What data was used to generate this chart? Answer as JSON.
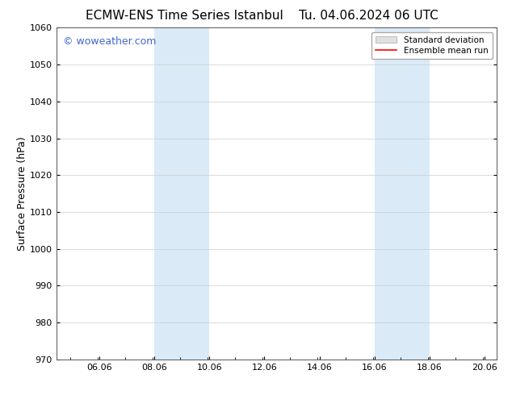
{
  "title_left": "ECMW-ENS Time Series Istanbul",
  "title_right": "Tu. 04.06.2024 06 UTC",
  "ylabel": "Surface Pressure (hPa)",
  "ylim": [
    970,
    1060
  ],
  "yticks": [
    970,
    980,
    990,
    1000,
    1010,
    1020,
    1030,
    1040,
    1050,
    1060
  ],
  "xlim_start": 4.5,
  "xlim_end": 20.5,
  "xtick_positions": [
    6.06,
    8.06,
    10.06,
    12.06,
    14.06,
    16.06,
    18.06,
    20.06
  ],
  "xtick_labels": [
    "06.06",
    "08.06",
    "10.06",
    "12.06",
    "14.06",
    "16.06",
    "18.06",
    "20.06"
  ],
  "shade_regions": [
    {
      "xmin": 8.06,
      "xmax": 10.06
    },
    {
      "xmin": 16.06,
      "xmax": 18.06
    }
  ],
  "shade_color": "#daeaf7",
  "watermark_text": "© woweather.com",
  "watermark_color": "#4466cc",
  "bg_color": "#ffffff",
  "plot_bg_color": "#ffffff",
  "legend_std_label": "Standard deviation",
  "legend_mean_label": "Ensemble mean run",
  "legend_std_facecolor": "#e0e0e0",
  "legend_std_edgecolor": "#aaaaaa",
  "legend_mean_color": "#ff0000",
  "title_fontsize": 11,
  "ylabel_fontsize": 9,
  "tick_fontsize": 8,
  "watermark_fontsize": 9,
  "legend_fontsize": 7.5
}
